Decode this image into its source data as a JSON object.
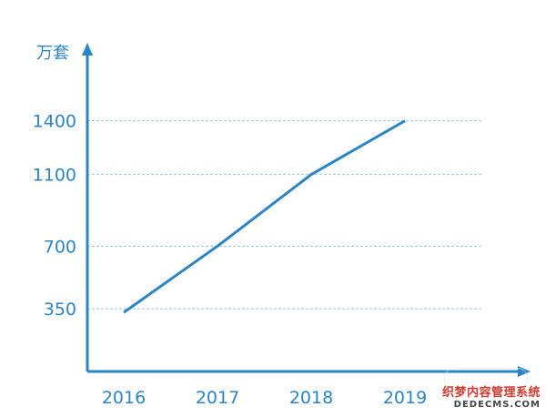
{
  "chart_data": {
    "type": "line",
    "ylabel": "万套",
    "categories": [
      "2016",
      "2017",
      "2018",
      "2019"
    ],
    "yticks": [
      350,
      700,
      1100,
      1400
    ],
    "series": [
      {
        "values": [
          330,
          700,
          1100,
          1400
        ]
      }
    ],
    "ylim": [
      0,
      1850
    ],
    "grid": true,
    "colors": {
      "line": "#2a84c5",
      "axis": "#2a84c5",
      "grid": "#9cc3de"
    }
  },
  "watermark": {
    "line1": "织梦内容管理系统",
    "line2": "DEDECMS.COM"
  }
}
